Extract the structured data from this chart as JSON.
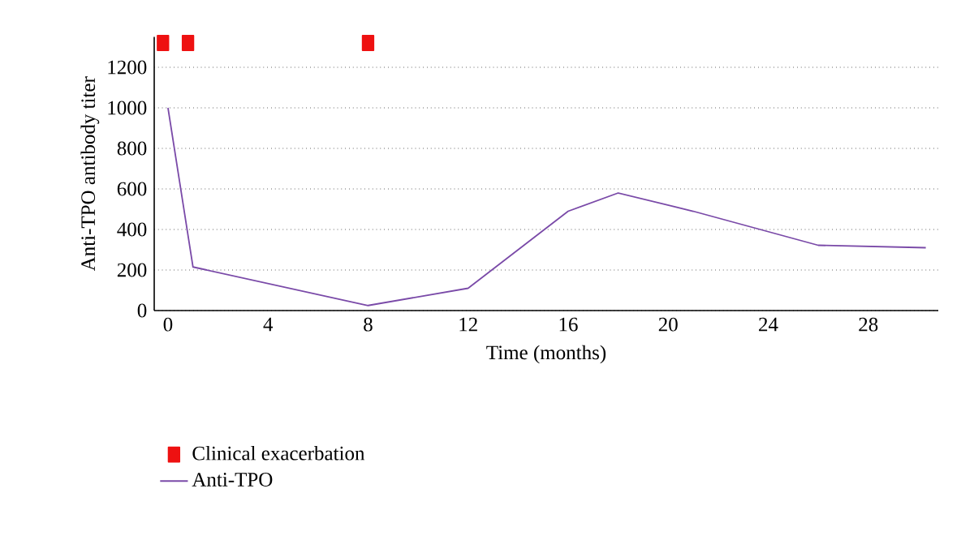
{
  "chart_data": {
    "type": "line",
    "xlabel": "Time (months)",
    "ylabel": "Anti-TPO antibody titer",
    "xlim": [
      -0.55,
      30.8
    ],
    "ylim": [
      0,
      1350
    ],
    "xticks": [
      0,
      4,
      8,
      12,
      16,
      20,
      24,
      28
    ],
    "yticks": [
      0,
      200,
      400,
      600,
      800,
      1000,
      1200
    ],
    "grid": "y",
    "legend": "bottom",
    "series": [
      {
        "name": "Clinical exacerbation",
        "type": "scatter",
        "marker": "square",
        "color": "#ee1111",
        "x": [
          -0.2,
          0.8,
          8.0
        ],
        "values": [
          1320,
          1320,
          1320
        ]
      },
      {
        "name": "Anti-TPO",
        "marker": "none",
        "line_style": "solid",
        "color": "#7a4aa8",
        "x": [
          0,
          1,
          8,
          12,
          16,
          18,
          21,
          26,
          30.3
        ],
        "values": [
          1000,
          215,
          25,
          110,
          490,
          580,
          490,
          322,
          310
        ]
      }
    ]
  }
}
